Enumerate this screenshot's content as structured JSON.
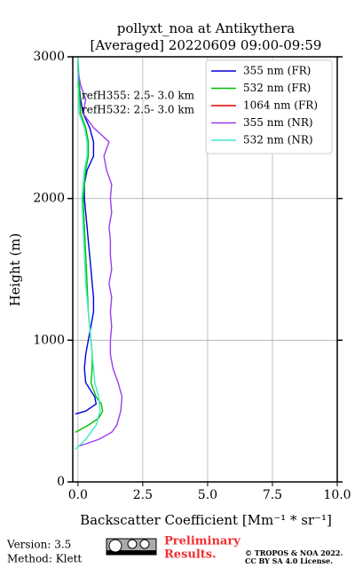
{
  "chart_data": {
    "type": "profile",
    "title": [
      "pollyxt_noa at Antikythera",
      "[Averaged] 20220609 09:00-09:59"
    ],
    "xlabel": "Backscatter Coefficient [Mm⁻¹ * sr⁻¹]",
    "ylabel": "Height (m)",
    "xlim": [
      -0.2,
      10
    ],
    "ylim": [
      0,
      3000
    ],
    "xticks": [
      {
        "value": 0,
        "label": "0.0"
      },
      {
        "value": 2.5,
        "label": "2.5"
      },
      {
        "value": 5,
        "label": "5.0"
      },
      {
        "value": 7.5,
        "label": "7.5"
      },
      {
        "value": 10,
        "label": "10.0"
      }
    ],
    "yticks": [
      0,
      1000,
      2000,
      3000
    ],
    "grid": true,
    "legend": "upper right",
    "annotations": [
      "refH355:  2.5- 3.0 km",
      "refH532:  2.5- 3.0 km"
    ],
    "series": [
      {
        "name": "355 nm (FR)",
        "color": "#0000e0",
        "heights": [
          480,
          500,
          550,
          600,
          700,
          800,
          900,
          1000,
          1100,
          1200,
          1300,
          1400,
          1500,
          1600,
          1700,
          1800,
          1900,
          2000,
          2100,
          2200,
          2300,
          2400,
          2500,
          2600,
          2700,
          2800,
          2900,
          3000
        ],
        "values": [
          -0.1,
          0.3,
          0.7,
          0.65,
          0.3,
          0.25,
          0.3,
          0.4,
          0.5,
          0.6,
          0.6,
          0.55,
          0.5,
          0.45,
          0.4,
          0.35,
          0.3,
          0.25,
          0.25,
          0.35,
          0.6,
          0.6,
          0.45,
          0.2,
          0.1,
          0.05,
          0.0,
          0.0
        ]
      },
      {
        "name": "532 nm (FR)",
        "color": "#00c000",
        "heights": [
          350,
          400,
          450,
          500,
          550,
          600,
          700,
          800,
          900,
          1000,
          1200,
          1400,
          1600,
          1800,
          2000,
          2200,
          2300,
          2400,
          2500,
          2600,
          2800,
          3000
        ],
        "values": [
          -0.1,
          0.4,
          0.8,
          0.95,
          0.9,
          0.7,
          0.5,
          0.55,
          0.55,
          0.5,
          0.4,
          0.35,
          0.3,
          0.25,
          0.2,
          0.3,
          0.4,
          0.4,
          0.3,
          0.1,
          0.05,
          0.0
        ]
      },
      {
        "name": "1064 nm (FR)",
        "color": "#e00000",
        "heights": [],
        "values": []
      },
      {
        "name": "355 nm (NR)",
        "color": "#9b3cf0",
        "heights": [
          250,
          300,
          350,
          400,
          500,
          600,
          700,
          800,
          900,
          1000,
          1100,
          1200,
          1300,
          1400,
          1500,
          1600,
          1700,
          1800,
          1900,
          2000,
          2100,
          2200,
          2300,
          2400,
          2500,
          2600,
          2700,
          2800,
          2900,
          3000
        ],
        "values": [
          0.0,
          0.8,
          1.3,
          1.5,
          1.65,
          1.7,
          1.55,
          1.35,
          1.25,
          1.25,
          1.3,
          1.25,
          1.3,
          1.2,
          1.3,
          1.25,
          1.25,
          1.2,
          1.3,
          1.25,
          1.3,
          1.1,
          1.0,
          1.2,
          0.6,
          0.2,
          0.3,
          0.1,
          0.0,
          0.0
        ]
      },
      {
        "name": "532 nm (NR)",
        "color": "#40e8c8",
        "heights": [
          230,
          300,
          400,
          500,
          600,
          700,
          800,
          900,
          1000,
          1200,
          1400,
          1600,
          1800,
          2000,
          2200,
          2300,
          2400,
          2500,
          2600,
          2800,
          3000
        ],
        "values": [
          -0.1,
          0.3,
          0.7,
          0.85,
          0.8,
          0.65,
          0.6,
          0.55,
          0.5,
          0.4,
          0.3,
          0.25,
          0.2,
          0.15,
          0.25,
          0.35,
          0.35,
          0.25,
          0.05,
          0.0,
          0.0
        ]
      }
    ]
  },
  "footer": {
    "version": "Version: 3.5",
    "method": "Method: Klett",
    "notice": [
      "Preliminary",
      "Results."
    ],
    "copyright": [
      "© TROPOS & NOA 2022.",
      "CC BY SA 4.0 License."
    ]
  }
}
